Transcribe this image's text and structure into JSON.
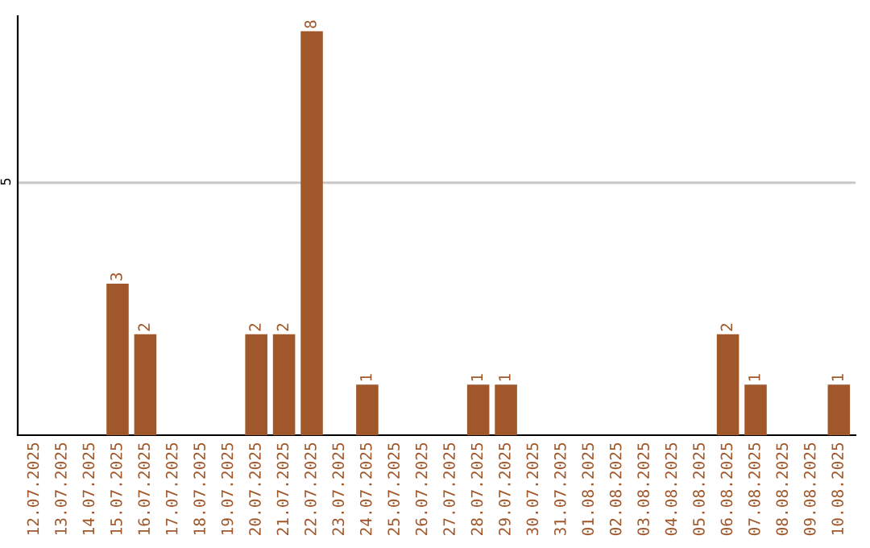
{
  "chart_data": {
    "type": "bar",
    "categories": [
      "12.07.2025",
      "13.07.2025",
      "14.07.2025",
      "15.07.2025",
      "16.07.2025",
      "17.07.2025",
      "18.07.2025",
      "19.07.2025",
      "20.07.2025",
      "21.07.2025",
      "22.07.2025",
      "23.07.2025",
      "24.07.2025",
      "25.07.2025",
      "26.07.2025",
      "27.07.2025",
      "28.07.2025",
      "29.07.2025",
      "30.07.2025",
      "31.07.2025",
      "01.08.2025",
      "02.08.2025",
      "03.08.2025",
      "04.08.2025",
      "05.08.2025",
      "06.08.2025",
      "07.08.2025",
      "08.08.2025",
      "09.08.2025",
      "10.08.2025"
    ],
    "values": [
      0,
      0,
      0,
      3,
      2,
      0,
      0,
      0,
      2,
      2,
      8,
      0,
      1,
      0,
      0,
      0,
      1,
      1,
      0,
      0,
      0,
      0,
      0,
      0,
      0,
      2,
      1,
      0,
      0,
      1
    ],
    "value_labels": [
      null,
      null,
      null,
      "3",
      "2",
      null,
      null,
      null,
      "2",
      "2",
      "8",
      null,
      "1",
      null,
      null,
      null,
      "1",
      "1",
      null,
      null,
      null,
      null,
      null,
      null,
      null,
      "2",
      "1",
      null,
      null,
      "1"
    ],
    "color": "#a0572a",
    "ylim": [
      0,
      8.3
    ],
    "yticks": [
      5
    ],
    "grid": "y"
  }
}
